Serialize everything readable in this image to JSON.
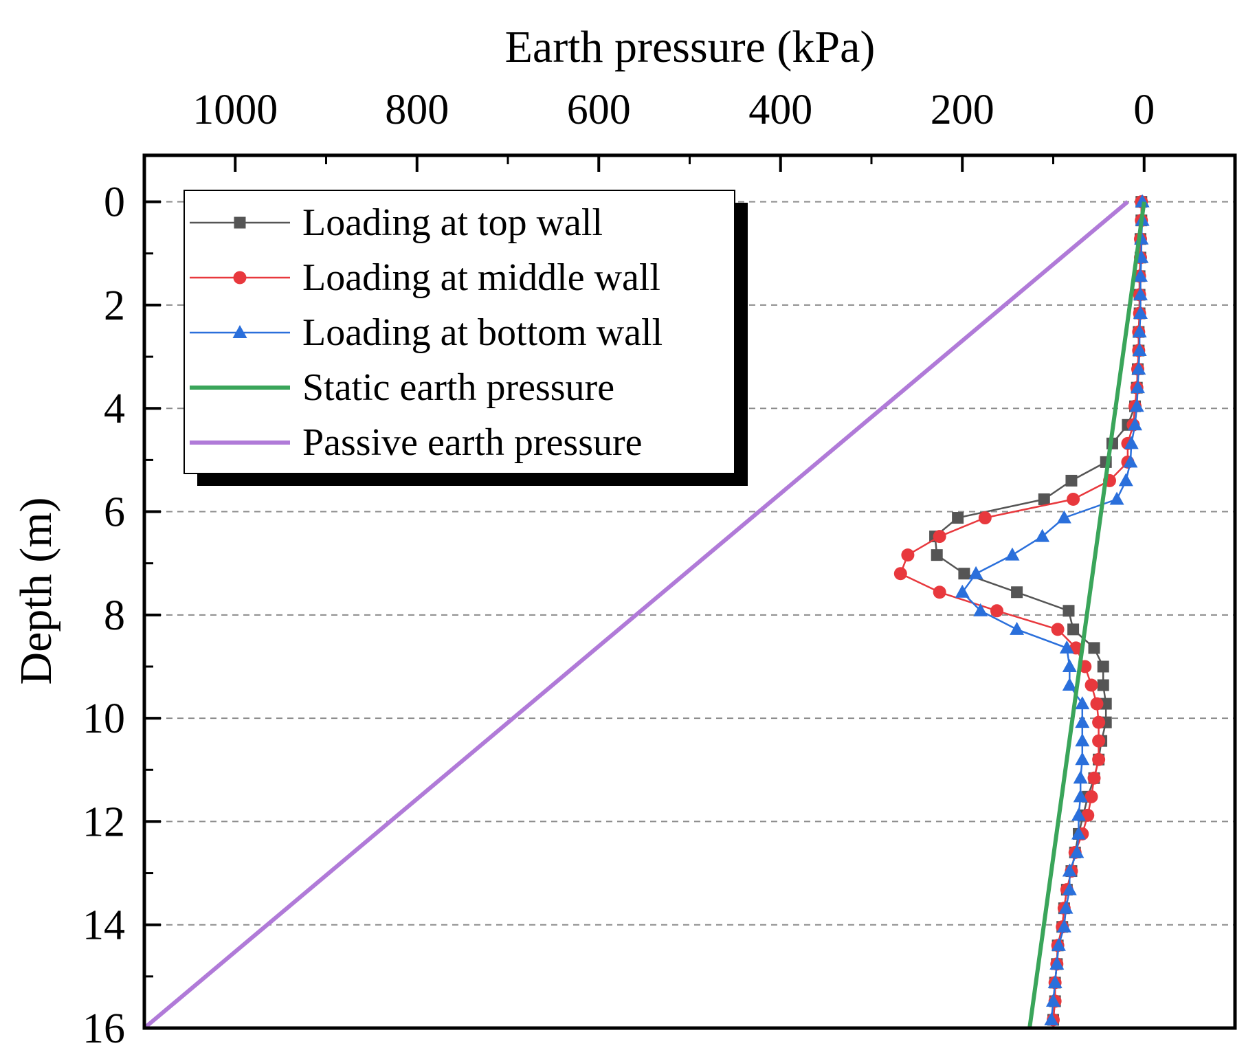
{
  "chart_data": {
    "type": "line",
    "title": "",
    "xlabel": "Earth pressure (kPa)",
    "ylabel": "Depth (m)",
    "xlim": [
      1100,
      -100
    ],
    "ylim": [
      -0.9,
      16
    ],
    "x_axis_position": "top",
    "y_axis_inverted": true,
    "xticks": [
      1000,
      800,
      600,
      400,
      200,
      0
    ],
    "yticks": [
      0,
      2,
      4,
      6,
      8,
      10,
      12,
      14,
      16
    ],
    "grid": "horizontal dashed",
    "legend_position": "top-left",
    "series": [
      {
        "name": "Loading at top wall",
        "color": "#555555",
        "marker": "square",
        "line_width": "thin",
        "depth": [
          0,
          0.36,
          0.72,
          1.08,
          1.44,
          1.8,
          2.16,
          2.52,
          2.88,
          3.24,
          3.6,
          3.96,
          4.32,
          4.68,
          5.04,
          5.4,
          5.76,
          6.12,
          6.48,
          6.84,
          7.2,
          7.56,
          7.92,
          8.28,
          8.64,
          9.0,
          9.36,
          9.72,
          10.08,
          10.44,
          10.8,
          11.16,
          11.52,
          11.88,
          12.24,
          12.6,
          12.96,
          13.32,
          13.68,
          14.04,
          14.4,
          14.76,
          15.12,
          15.48,
          15.84
        ],
        "pressure": [
          3,
          3,
          4,
          4,
          5,
          5,
          5,
          6,
          6,
          7,
          8,
          10,
          18,
          35,
          42,
          80,
          110,
          205,
          230,
          228,
          198,
          140,
          83,
          78,
          55,
          45,
          45,
          42,
          42,
          47,
          50,
          55,
          62,
          67,
          72,
          76,
          80,
          85,
          88,
          90,
          95,
          96,
          98,
          98,
          100
        ]
      },
      {
        "name": "Loading at middle wall",
        "color": "#e8383d",
        "marker": "circle",
        "line_width": "thin",
        "depth": [
          0,
          0.36,
          0.72,
          1.08,
          1.44,
          1.8,
          2.16,
          2.52,
          2.88,
          3.24,
          3.6,
          3.96,
          4.32,
          4.68,
          5.04,
          5.4,
          5.76,
          6.12,
          6.48,
          6.84,
          7.2,
          7.56,
          7.92,
          8.28,
          8.64,
          9.0,
          9.36,
          9.72,
          10.08,
          10.44,
          10.8,
          11.16,
          11.52,
          11.88,
          12.24,
          12.6,
          12.96,
          13.32,
          13.68,
          14.04,
          14.4,
          14.76,
          15.12,
          15.48,
          15.84
        ],
        "pressure": [
          3,
          3,
          4,
          4,
          5,
          5,
          5,
          6,
          6,
          7,
          8,
          10,
          12,
          18,
          18,
          38,
          78,
          175,
          225,
          260,
          268,
          225,
          162,
          95,
          75,
          65,
          58,
          52,
          50,
          50,
          50,
          55,
          58,
          62,
          68,
          76,
          80,
          85,
          88,
          90,
          95,
          96,
          98,
          98,
          100
        ]
      },
      {
        "name": "Loading at bottom wall",
        "color": "#2a6fdb",
        "marker": "triangle",
        "line_width": "thin",
        "depth": [
          0,
          0.36,
          0.72,
          1.08,
          1.44,
          1.8,
          2.16,
          2.52,
          2.88,
          3.24,
          3.6,
          3.96,
          4.32,
          4.68,
          5.04,
          5.4,
          5.76,
          6.12,
          6.48,
          6.84,
          7.2,
          7.56,
          7.92,
          8.28,
          8.64,
          9.0,
          9.36,
          9.72,
          10.08,
          10.44,
          10.8,
          11.16,
          11.52,
          11.88,
          12.24,
          12.6,
          12.96,
          13.32,
          13.68,
          14.04,
          14.4,
          14.76,
          15.12,
          15.48,
          15.84
        ],
        "pressure": [
          2,
          2,
          3,
          3,
          4,
          4,
          4,
          5,
          5,
          6,
          7,
          8,
          10,
          14,
          15,
          20,
          30,
          88,
          112,
          145,
          185,
          200,
          180,
          140,
          85,
          82,
          82,
          68,
          68,
          68,
          68,
          70,
          70,
          72,
          72,
          74,
          82,
          82,
          86,
          88,
          94,
          96,
          98,
          100,
          102
        ]
      },
      {
        "name": "Static earth pressure",
        "color": "#3aa55a",
        "marker": "none",
        "line_width": "thick",
        "depth": [
          0,
          16
        ],
        "pressure": [
          0,
          126
        ]
      },
      {
        "name": "Passive earth pressure",
        "color": "#b07ad8",
        "marker": "none",
        "line_width": "thick",
        "depth": [
          0,
          16
        ],
        "pressure": [
          18,
          1100
        ]
      }
    ]
  }
}
